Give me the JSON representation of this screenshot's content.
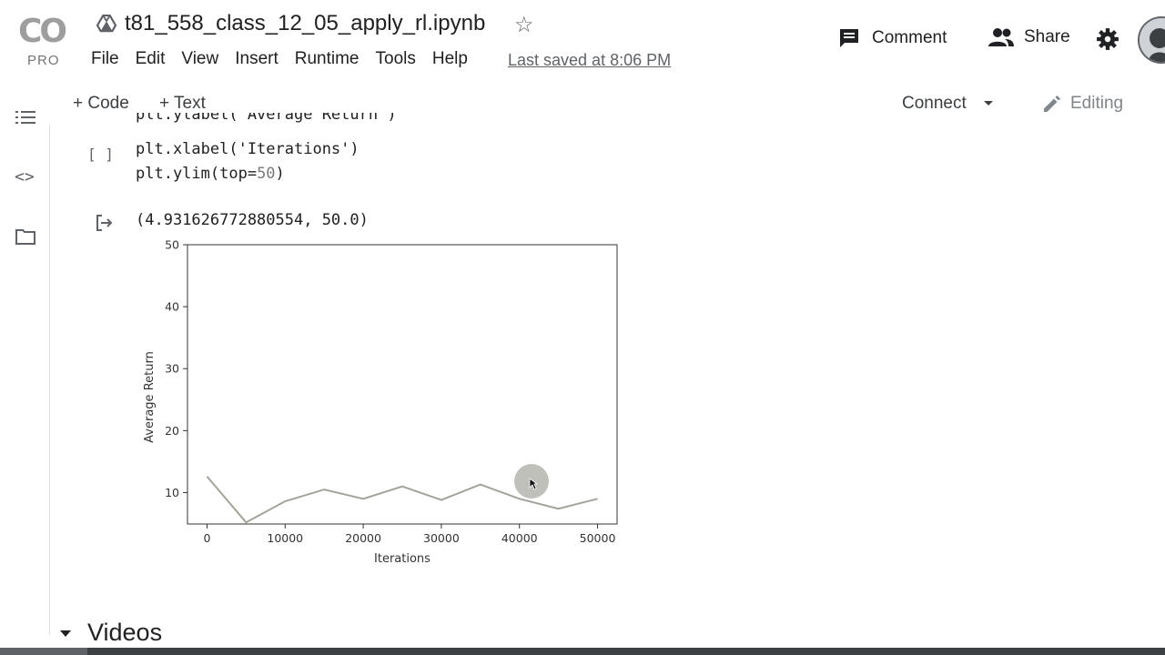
{
  "header": {
    "logo_text": "CO",
    "logo_sub": "PRO",
    "notebook_title": "t81_558_class_12_05_apply_rl.ipynb",
    "menu": [
      "File",
      "Edit",
      "View",
      "Insert",
      "Runtime",
      "Tools",
      "Help"
    ],
    "last_saved": "Last saved at 8:06 PM",
    "comment_label": "Comment",
    "share_label": "Share"
  },
  "toolbar": {
    "add_code": "+ Code",
    "add_text": "+ Text",
    "connect_label": "Connect",
    "editing_label": "Editing"
  },
  "cell": {
    "run_bracket": "[ ]",
    "code_lines": [
      "plt.ylabel('Average Return')",
      "plt.xlabel('Iterations')",
      "plt.ylim(top=",
      "50",
      ")"
    ],
    "output_text": "(4.931626772880554, 50.0)"
  },
  "chart_data": {
    "type": "line",
    "x": [
      0,
      5000,
      10000,
      15000,
      20000,
      25000,
      30000,
      35000,
      40000,
      45000,
      50000
    ],
    "series": [
      {
        "values": [
          12.6,
          5.2,
          8.6,
          10.5,
          9.0,
          11.0,
          8.8,
          11.3,
          9.0,
          7.4,
          9.0
        ]
      }
    ],
    "xlabel": "Iterations",
    "ylabel": "Average Return",
    "xlim": [
      -2500,
      52500
    ],
    "ylim": [
      4.93,
      50
    ],
    "xticks": [
      0,
      10000,
      20000,
      30000,
      40000,
      50000
    ],
    "yticks": [
      10,
      20,
      30,
      40,
      50
    ],
    "grid": false,
    "line_color": "#a3a39a"
  },
  "sections": {
    "videos_heading": "Videos"
  }
}
